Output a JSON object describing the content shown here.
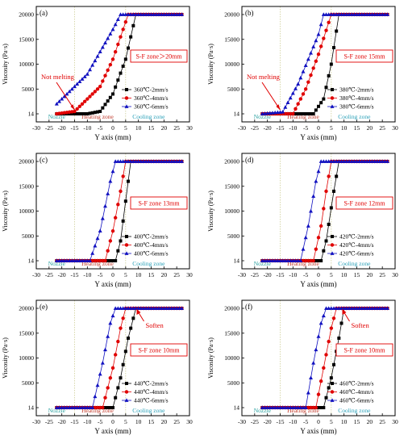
{
  "chart_data": [
    {
      "type": "line",
      "panel_label": "(a)",
      "xlabel": "Y axis (mm)",
      "ylabel": "Viscosity (Pa·s)",
      "xlim": [
        -30,
        30
      ],
      "x_ticks": [
        "-30",
        "-25",
        "-20",
        "-15",
        "-10",
        "-5",
        "0",
        "5",
        "10",
        "15",
        "20",
        "25",
        "30"
      ],
      "y_ticks": [
        "14",
        "5000",
        "10000",
        "15000",
        "20000"
      ],
      "zone_labels": [
        "Nozzle",
        "Heating zone",
        "Cooling zone"
      ],
      "sf_label": "S-F zone＞20mm",
      "annotation": "Not melting",
      "series": [
        {
          "name": "360℃-2mm/s",
          "marker": "square",
          "color": "#000000",
          "x": [
            -22,
            -10,
            -5,
            0,
            5,
            9,
            27
          ],
          "y": [
            14,
            14,
            500,
            4000,
            11000,
            20000,
            20000
          ]
        },
        {
          "name": "360℃-4mm/s",
          "marker": "circle",
          "color": "#e00000",
          "x": [
            -22,
            -15,
            -5,
            0,
            6,
            27
          ],
          "y": [
            14,
            500,
            5500,
            11000,
            20000,
            20000
          ]
        },
        {
          "name": "360℃-6mm/s",
          "marker": "triangle",
          "color": "#1010c0",
          "x": [
            -22,
            -10,
            0,
            3,
            27
          ],
          "y": [
            2000,
            8000,
            17000,
            20000,
            20000
          ]
        }
      ]
    },
    {
      "type": "line",
      "panel_label": "(b)",
      "xlabel": "Y axis (mm)",
      "ylabel": "Viscosity (Pa·s)",
      "xlim": [
        -30,
        30
      ],
      "x_ticks": [
        "-30",
        "-25",
        "-20",
        "-15",
        "-10",
        "-5",
        "0",
        "5",
        "10",
        "15",
        "20",
        "25",
        "30"
      ],
      "y_ticks": [
        "14",
        "5000",
        "10000",
        "15000",
        "20000"
      ],
      "zone_labels": [
        "Nozzle",
        "Heating zone",
        "Cooling zone"
      ],
      "sf_label": "S-F zone 15mm",
      "annotation": "Not melting",
      "series": [
        {
          "name": "380℃-2mm/s",
          "marker": "square",
          "color": "#000000",
          "x": [
            -22,
            -2,
            2,
            5,
            8,
            27
          ],
          "y": [
            14,
            14,
            3000,
            10000,
            20000,
            20000
          ]
        },
        {
          "name": "380℃-4mm/s",
          "marker": "circle",
          "color": "#e00000",
          "x": [
            -22,
            -10,
            -5,
            0,
            5,
            27
          ],
          "y": [
            14,
            14,
            5000,
            12000,
            20000,
            20000
          ]
        },
        {
          "name": "380℃-6mm/s",
          "marker": "triangle",
          "color": "#1010c0",
          "x": [
            -22,
            -14,
            -8,
            0,
            2,
            27
          ],
          "y": [
            14,
            400,
            6000,
            16000,
            20000,
            20000
          ]
        }
      ]
    },
    {
      "type": "line",
      "panel_label": "(c)",
      "xlabel": "Y axis (mm)",
      "ylabel": "Viscosity (Pa·s)",
      "xlim": [
        -30,
        30
      ],
      "x_ticks": [
        "-30",
        "-25",
        "-20",
        "-15",
        "-10",
        "-5",
        "0",
        "5",
        "10",
        "15",
        "20",
        "25",
        "30"
      ],
      "y_ticks": [
        "14",
        "5000",
        "10000",
        "15000",
        "20000"
      ],
      "zone_labels": [
        "Nozzle",
        "Heating zone",
        "Cooling zone"
      ],
      "sf_label": "S-F zone 13mm",
      "annotation": "",
      "series": [
        {
          "name": "400℃-2mm/s",
          "marker": "square",
          "color": "#000000",
          "x": [
            -22,
            1,
            3,
            5,
            7,
            27
          ],
          "y": [
            14,
            14,
            4000,
            12000,
            20000,
            20000
          ]
        },
        {
          "name": "400℃-4mm/s",
          "marker": "circle",
          "color": "#e00000",
          "x": [
            -22,
            -3,
            0,
            3,
            5,
            27
          ],
          "y": [
            14,
            14,
            6000,
            14000,
            20000,
            20000
          ]
        },
        {
          "name": "400℃-6mm/s",
          "marker": "triangle",
          "color": "#1010c0",
          "x": [
            -22,
            -9,
            -5,
            -1,
            1,
            27
          ],
          "y": [
            14,
            14,
            6000,
            16000,
            20000,
            20000
          ]
        }
      ]
    },
    {
      "type": "line",
      "panel_label": "(d)",
      "xlabel": "Y axis (mm)",
      "ylabel": "Viscosity (Pa·s)",
      "xlim": [
        -30,
        30
      ],
      "x_ticks": [
        "-30",
        "-25",
        "-20",
        "-15",
        "-10",
        "-5",
        "0",
        "5",
        "10",
        "15",
        "20",
        "25",
        "30"
      ],
      "y_ticks": [
        "14",
        "5000",
        "10000",
        "15000",
        "20000"
      ],
      "zone_labels": [
        "Nozzle",
        "Heating zone",
        "Cooling zone"
      ],
      "sf_label": "S-F zone 12mm",
      "annotation": "",
      "series": [
        {
          "name": "420℃-2mm/s",
          "marker": "square",
          "color": "#000000",
          "x": [
            -22,
            1,
            3,
            6,
            8,
            27
          ],
          "y": [
            14,
            14,
            4000,
            14000,
            20000,
            20000
          ]
        },
        {
          "name": "420℃-4mm/s",
          "marker": "circle",
          "color": "#e00000",
          "x": [
            -22,
            -2,
            1,
            3,
            5,
            27
          ],
          "y": [
            14,
            14,
            7000,
            14000,
            20000,
            20000
          ]
        },
        {
          "name": "420℃-6mm/s",
          "marker": "triangle",
          "color": "#1010c0",
          "x": [
            -22,
            -7,
            -4,
            -1,
            1,
            27
          ],
          "y": [
            14,
            14,
            7000,
            16000,
            20000,
            20000
          ]
        }
      ]
    },
    {
      "type": "line",
      "panel_label": "(e)",
      "xlabel": "Y axis (mm)",
      "ylabel": "Viscosity (Pa·s)",
      "xlim": [
        -30,
        30
      ],
      "x_ticks": [
        "-30",
        "-25",
        "-20",
        "-15",
        "-10",
        "-5",
        "0",
        "5",
        "10",
        "15",
        "20",
        "25",
        "30"
      ],
      "y_ticks": [
        "14",
        "5000",
        "10000",
        "15000",
        "20000"
      ],
      "zone_labels": [
        "Nozzle",
        "Heating zone",
        "Cooling zone"
      ],
      "sf_label": "S-F zone 10mm",
      "annotation": "Soften",
      "series": [
        {
          "name": "440℃-2mm/s",
          "marker": "square",
          "color": "#000000",
          "x": [
            -22,
            0,
            3,
            6,
            9,
            27
          ],
          "y": [
            14,
            14,
            6000,
            14000,
            20000,
            20000
          ]
        },
        {
          "name": "440℃-4mm/s",
          "marker": "circle",
          "color": "#e00000",
          "x": [
            -22,
            -4,
            0,
            3,
            5,
            27
          ],
          "y": [
            14,
            14,
            8000,
            16000,
            20000,
            20000
          ]
        },
        {
          "name": "440℃-6mm/s",
          "marker": "triangle",
          "color": "#1010c0",
          "x": [
            -22,
            -8,
            -4,
            -1,
            1,
            27
          ],
          "y": [
            14,
            14,
            9000,
            17000,
            20000,
            20000
          ]
        }
      ]
    },
    {
      "type": "line",
      "panel_label": "(f)",
      "xlabel": "Y axis (mm)",
      "ylabel": "Viscosity (Pa·s)",
      "xlim": [
        -30,
        30
      ],
      "x_ticks": [
        "-30",
        "-25",
        "-20",
        "-15",
        "-10",
        "-5",
        "0",
        "5",
        "10",
        "15",
        "20",
        "25",
        "30"
      ],
      "y_ticks": [
        "14",
        "5000",
        "10000",
        "15000",
        "20000"
      ],
      "zone_labels": [
        "Nozzle",
        "Heating zone",
        "Cooling zone"
      ],
      "sf_label": "S-F zone 10mm",
      "annotation": "Soften",
      "series": [
        {
          "name": "460℃-2mm/s",
          "marker": "square",
          "color": "#000000",
          "x": [
            -22,
            2,
            5,
            8,
            10,
            27
          ],
          "y": [
            14,
            14,
            6000,
            14000,
            20000,
            20000
          ]
        },
        {
          "name": "460℃-4mm/s",
          "marker": "circle",
          "color": "#e00000",
          "x": [
            -22,
            -1,
            2,
            5,
            7,
            27
          ],
          "y": [
            14,
            14,
            8000,
            16000,
            20000,
            20000
          ]
        },
        {
          "name": "460℃-6mm/s",
          "marker": "triangle",
          "color": "#1010c0",
          "x": [
            -22,
            -5,
            -2,
            1,
            3,
            27
          ],
          "y": [
            14,
            14,
            9000,
            17000,
            20000,
            20000
          ]
        }
      ]
    }
  ]
}
